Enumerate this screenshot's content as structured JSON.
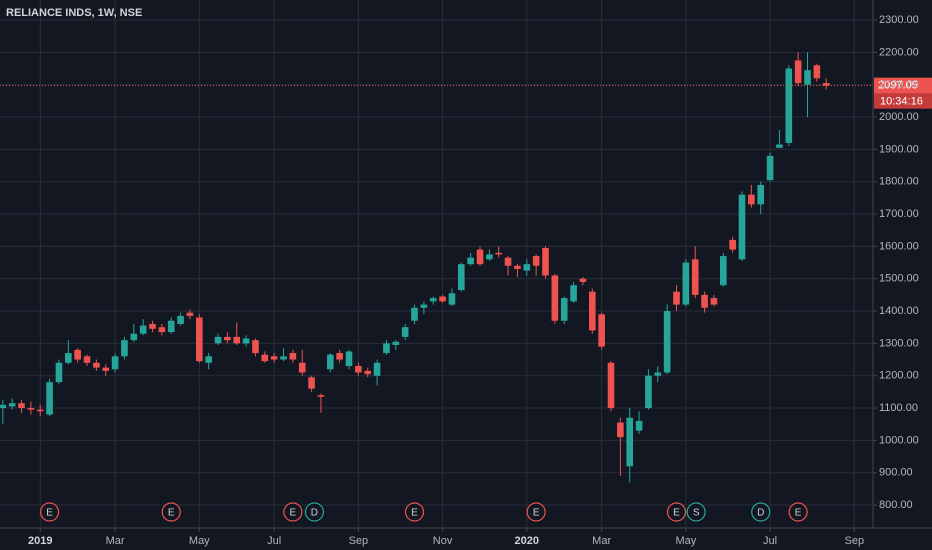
{
  "chart_data": {
    "type": "candlestick",
    "title": "RELIANCE INDS, 1W, NSE",
    "countdown": "10:34:16",
    "up_color": "#26a69a",
    "down_color": "#ef5350",
    "grid": true,
    "ylim": [
      729,
      2362
    ],
    "yticks": [
      {
        "value": 800,
        "label": "800.00"
      },
      {
        "value": 900,
        "label": "900.00"
      },
      {
        "value": 1000,
        "label": "1000.00"
      },
      {
        "value": 1100,
        "label": "1100.00"
      },
      {
        "value": 1200,
        "label": "1200.00"
      },
      {
        "value": 1300,
        "label": "1300.00"
      },
      {
        "value": 1400,
        "label": "1400.00"
      },
      {
        "value": 1500,
        "label": "1500.00"
      },
      {
        "value": 1600,
        "label": "1600.00"
      },
      {
        "value": 1700,
        "label": "1700.00"
      },
      {
        "value": 1800,
        "label": "1800.00"
      },
      {
        "value": 1900,
        "label": "1900.00"
      },
      {
        "value": 2000,
        "label": "2000.00"
      },
      {
        "value": 2100,
        "label": "2100.00"
      },
      {
        "value": 2200,
        "label": "2200.00"
      },
      {
        "value": 2300,
        "label": "2300.00"
      }
    ],
    "xlim": [
      -0.3,
      93
    ],
    "xticks": [
      {
        "value": 4,
        "label": "2019"
      },
      {
        "value": 12,
        "label": "Mar"
      },
      {
        "value": 21,
        "label": "May"
      },
      {
        "value": 29,
        "label": "Jul"
      },
      {
        "value": 38,
        "label": "Sep"
      },
      {
        "value": 47,
        "label": "Nov"
      },
      {
        "value": 56,
        "label": "2020"
      },
      {
        "value": 64,
        "label": "Mar"
      },
      {
        "value": 73,
        "label": "May"
      },
      {
        "value": 82,
        "label": "Jul"
      },
      {
        "value": 91,
        "label": "Sep"
      }
    ],
    "events": [
      "E",
      "E",
      "E",
      "D",
      "E",
      "E",
      "E",
      "S",
      "D",
      "E"
    ],
    "open": [
      1100,
      1105,
      1115,
      1100,
      1095,
      1080,
      1180,
      1240,
      1280,
      1260,
      1240,
      1225,
      1220,
      1260,
      1310,
      1330,
      1360,
      1350,
      1335,
      1360,
      1395,
      1380,
      1240,
      1300,
      1320,
      1320,
      1300,
      1310,
      1265,
      1260,
      1250,
      1270,
      1240,
      1195,
      1140,
      1220,
      1270,
      1230,
      1230,
      1215,
      1200,
      1270,
      1295,
      1320,
      1370,
      1410,
      1430,
      1445,
      1420,
      1465,
      1545,
      1590,
      1560,
      1580,
      1565,
      1540,
      1525,
      1570,
      1595,
      1510,
      1370,
      1430,
      1500,
      1460,
      1390,
      1240,
      1055,
      920,
      1030,
      1100,
      1200,
      1210,
      1460,
      1420,
      1560,
      1450,
      1440,
      1480,
      1620,
      1560,
      1760,
      1730,
      1805,
      1905,
      1920,
      2175,
      2100,
      2160,
      2105
    ],
    "high": [
      1125,
      1130,
      1125,
      1120,
      1110,
      1190,
      1250,
      1310,
      1285,
      1265,
      1250,
      1235,
      1270,
      1320,
      1360,
      1375,
      1370,
      1360,
      1380,
      1395,
      1405,
      1390,
      1270,
      1330,
      1335,
      1365,
      1325,
      1315,
      1275,
      1270,
      1285,
      1280,
      1280,
      1200,
      1145,
      1270,
      1280,
      1280,
      1240,
      1225,
      1250,
      1310,
      1310,
      1360,
      1420,
      1430,
      1445,
      1450,
      1470,
      1550,
      1580,
      1600,
      1590,
      1600,
      1570,
      1545,
      1560,
      1575,
      1600,
      1515,
      1445,
      1490,
      1505,
      1470,
      1395,
      1245,
      1070,
      1100,
      1090,
      1220,
      1230,
      1420,
      1480,
      1560,
      1600,
      1460,
      1450,
      1580,
      1630,
      1770,
      1790,
      1800,
      1890,
      1960,
      2160,
      2200,
      2200,
      2165,
      2120
    ],
    "low": [
      1050,
      1095,
      1085,
      1080,
      1075,
      1075,
      1175,
      1235,
      1240,
      1230,
      1215,
      1200,
      1210,
      1250,
      1305,
      1325,
      1335,
      1325,
      1330,
      1355,
      1375,
      1240,
      1220,
      1295,
      1300,
      1295,
      1290,
      1260,
      1240,
      1240,
      1245,
      1240,
      1200,
      1150,
      1085,
      1210,
      1240,
      1220,
      1200,
      1195,
      1170,
      1265,
      1280,
      1310,
      1360,
      1390,
      1420,
      1425,
      1415,
      1460,
      1540,
      1540,
      1555,
      1565,
      1510,
      1505,
      1510,
      1510,
      1500,
      1360,
      1360,
      1425,
      1480,
      1330,
      1280,
      1090,
      890,
      870,
      1020,
      1095,
      1180,
      1205,
      1400,
      1415,
      1440,
      1395,
      1415,
      1475,
      1580,
      1555,
      1720,
      1700,
      1800,
      1905,
      1910,
      2095,
      2000,
      2110,
      2085
    ],
    "close": [
      1110,
      1115,
      1100,
      1095,
      1090,
      1180,
      1240,
      1270,
      1250,
      1240,
      1225,
      1215,
      1260,
      1310,
      1330,
      1355,
      1345,
      1335,
      1370,
      1385,
      1385,
      1245,
      1260,
      1320,
      1310,
      1300,
      1315,
      1270,
      1245,
      1250,
      1260,
      1250,
      1210,
      1160,
      1135,
      1265,
      1250,
      1275,
      1210,
      1205,
      1240,
      1300,
      1305,
      1350,
      1410,
      1420,
      1440,
      1430,
      1455,
      1545,
      1565,
      1545,
      1575,
      1575,
      1540,
      1530,
      1545,
      1540,
      1510,
      1370,
      1440,
      1480,
      1490,
      1340,
      1290,
      1100,
      1010,
      1070,
      1060,
      1200,
      1210,
      1400,
      1420,
      1550,
      1450,
      1410,
      1420,
      1570,
      1590,
      1760,
      1730,
      1790,
      1880,
      1915,
      2150,
      2105,
      2145,
      2120,
      2097.05
    ]
  }
}
